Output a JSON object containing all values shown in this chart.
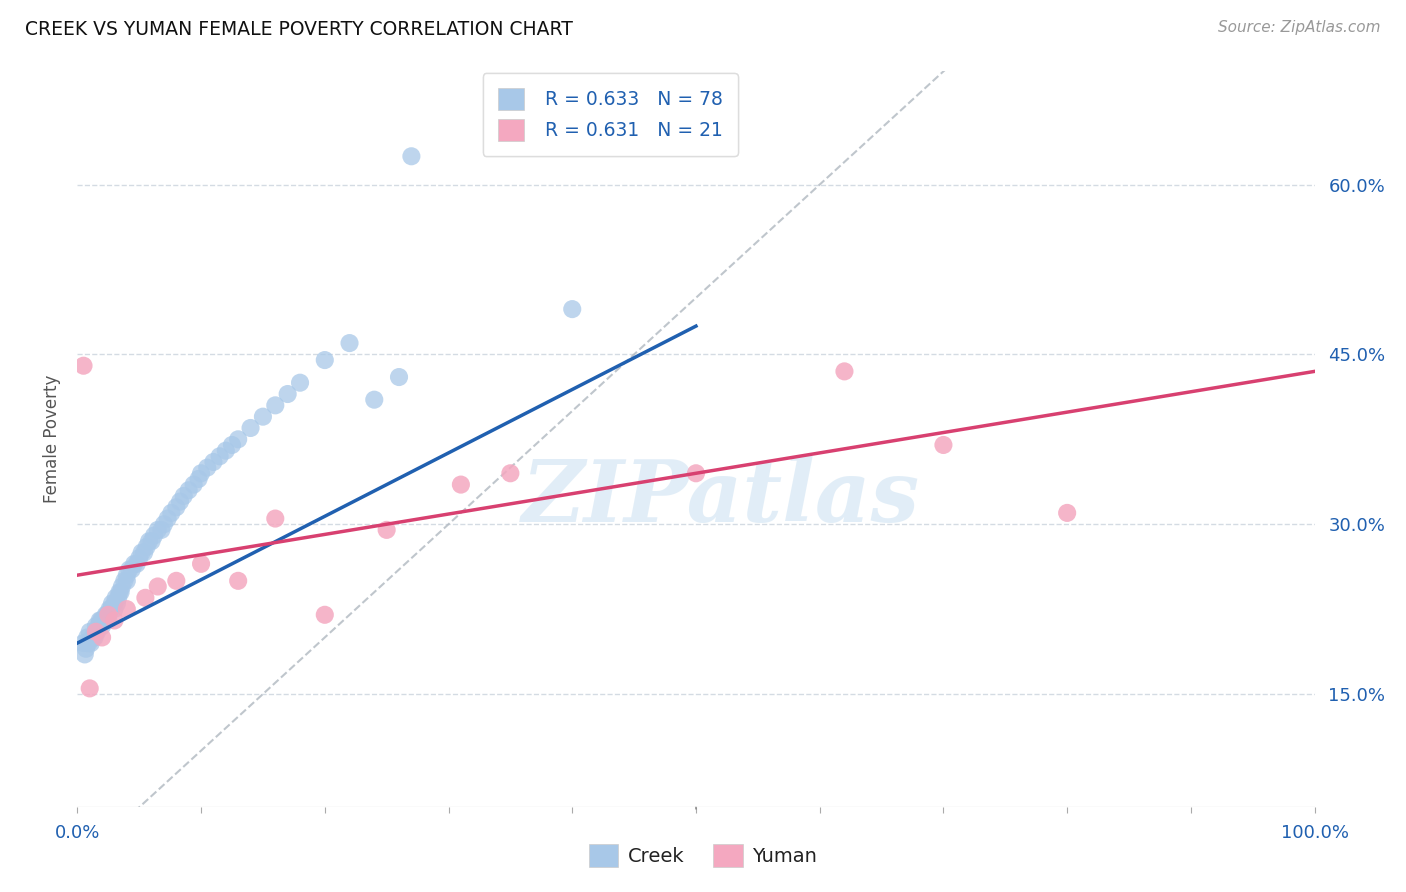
{
  "title": "CREEK VS YUMAN FEMALE POVERTY CORRELATION CHART",
  "source": "Source: ZipAtlas.com",
  "ylabel": "Female Poverty",
  "xlim": [
    0.0,
    1.0
  ],
  "ylim": [
    0.05,
    0.7
  ],
  "xtick_positions": [
    0.0,
    0.1,
    0.2,
    0.3,
    0.4,
    0.5,
    0.6,
    0.7,
    0.8,
    0.9,
    1.0
  ],
  "xtick_labels_show": {
    "0.0": "0.0%",
    "1.0": "100.0%"
  },
  "ytick_vals": [
    0.15,
    0.3,
    0.45,
    0.6
  ],
  "ytick_labels": [
    "15.0%",
    "30.0%",
    "45.0%",
    "60.0%"
  ],
  "watermark": "ZIPatlas",
  "legend_creek_r": "R = 0.633",
  "legend_creek_n": "N = 78",
  "legend_yuman_r": "R = 0.631",
  "legend_yuman_n": "N = 21",
  "creek_color": "#a8c8e8",
  "yuman_color": "#f4a8c0",
  "creek_line_color": "#2060b0",
  "yuman_line_color": "#d84070",
  "diag_line_color": "#b0b8c0",
  "background_color": "#ffffff",
  "grid_color": "#d0d8e0",
  "creek_line_x0": 0.0,
  "creek_line_y0": 0.195,
  "creek_line_x1": 0.5,
  "creek_line_y1": 0.475,
  "yuman_line_x0": 0.0,
  "yuman_line_y0": 0.255,
  "yuman_line_x1": 1.0,
  "yuman_line_y1": 0.435,
  "creek_x": [
    0.005,
    0.006,
    0.007,
    0.008,
    0.009,
    0.01,
    0.011,
    0.012,
    0.013,
    0.014,
    0.015,
    0.015,
    0.016,
    0.017,
    0.018,
    0.019,
    0.02,
    0.02,
    0.021,
    0.022,
    0.023,
    0.024,
    0.025,
    0.025,
    0.026,
    0.027,
    0.028,
    0.03,
    0.03,
    0.031,
    0.032,
    0.033,
    0.034,
    0.035,
    0.036,
    0.038,
    0.04,
    0.04,
    0.042,
    0.044,
    0.046,
    0.048,
    0.05,
    0.052,
    0.054,
    0.056,
    0.058,
    0.06,
    0.062,
    0.065,
    0.068,
    0.07,
    0.073,
    0.076,
    0.08,
    0.083,
    0.086,
    0.09,
    0.094,
    0.098,
    0.1,
    0.105,
    0.11,
    0.115,
    0.12,
    0.125,
    0.13,
    0.14,
    0.15,
    0.16,
    0.17,
    0.18,
    0.2,
    0.22,
    0.24,
    0.26,
    0.27,
    0.4
  ],
  "creek_y": [
    0.195,
    0.185,
    0.19,
    0.2,
    0.195,
    0.205,
    0.195,
    0.2,
    0.2,
    0.2,
    0.21,
    0.205,
    0.205,
    0.21,
    0.215,
    0.215,
    0.215,
    0.21,
    0.215,
    0.215,
    0.22,
    0.22,
    0.215,
    0.22,
    0.225,
    0.225,
    0.23,
    0.23,
    0.225,
    0.235,
    0.23,
    0.235,
    0.24,
    0.24,
    0.245,
    0.25,
    0.255,
    0.25,
    0.26,
    0.26,
    0.265,
    0.265,
    0.27,
    0.275,
    0.275,
    0.28,
    0.285,
    0.285,
    0.29,
    0.295,
    0.295,
    0.3,
    0.305,
    0.31,
    0.315,
    0.32,
    0.325,
    0.33,
    0.335,
    0.34,
    0.345,
    0.35,
    0.355,
    0.36,
    0.365,
    0.37,
    0.375,
    0.385,
    0.395,
    0.405,
    0.415,
    0.425,
    0.445,
    0.46,
    0.41,
    0.43,
    0.625,
    0.49
  ],
  "yuman_x": [
    0.005,
    0.01,
    0.015,
    0.02,
    0.025,
    0.03,
    0.04,
    0.055,
    0.065,
    0.08,
    0.1,
    0.13,
    0.16,
    0.2,
    0.25,
    0.31,
    0.35,
    0.5,
    0.62,
    0.7,
    0.8
  ],
  "yuman_y": [
    0.44,
    0.155,
    0.205,
    0.2,
    0.22,
    0.215,
    0.225,
    0.235,
    0.245,
    0.25,
    0.265,
    0.25,
    0.305,
    0.22,
    0.295,
    0.335,
    0.345,
    0.345,
    0.435,
    0.37,
    0.31
  ],
  "figsize": [
    14.06,
    8.92
  ],
  "dpi": 100
}
